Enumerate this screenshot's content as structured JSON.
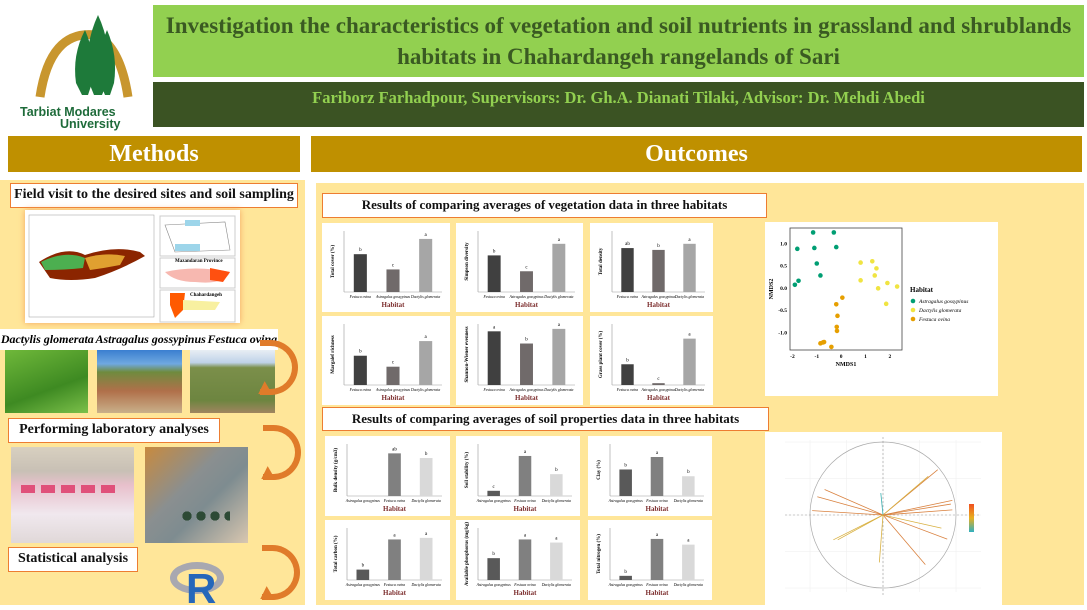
{
  "logo": {
    "text_line1": "Tarbiat Modares",
    "text_line2": "University"
  },
  "header": {
    "title": "Investigation the characteristics of vegetation and soil nutrients in grassland and shrublands habitats in Chahardangeh rangelands of Sari",
    "authors": "Fariborz Farhadpour, Supervisors: Dr. Gh.A. Dianati Tilaki, Advisor: Dr. Mehdi Abedi"
  },
  "methods": {
    "heading": "Methods",
    "field_visit": "Field visit to the desired sites and soil sampling",
    "map_labels": {
      "province": "Mazandaran Province",
      "area": "Chahardangeh"
    },
    "species": [
      "Dactylis glomerata",
      "Astragalus gossypinus",
      "Festuca ovina"
    ],
    "lab": "Performing laboratory analyses",
    "stats": "Statistical analysis",
    "r_logo": "R"
  },
  "outcomes": {
    "heading": "Outcomes",
    "veg_heading": "Results of comparing averages of vegetation data in three habitats",
    "soil_heading": "Results of comparing averages of soil properties data in three habitats"
  },
  "colors": {
    "green": "#92D050",
    "dark_green": "#3B5323",
    "gold": "#BF9000",
    "panel": "#FFE699",
    "border": "#ED7D31"
  },
  "chart_data": [
    {
      "type": "bar",
      "group": "vegetation",
      "ylabel": "Total cover (%)",
      "xlabel": "Habitat",
      "categories": [
        "Festuca ovina",
        "Astragalus gossypinus",
        "Dactylis glomerata"
      ],
      "values": [
        0.62,
        0.37,
        0.87
      ],
      "letters": [
        "b",
        "c",
        "a"
      ],
      "ylim": [
        0,
        1
      ]
    },
    {
      "type": "bar",
      "group": "vegetation",
      "ylabel": "Simpson diversity",
      "xlabel": "Habitat",
      "categories": [
        "Festuca ovina",
        "Astragalus gossypinus",
        "Dactylis glomerata"
      ],
      "values": [
        0.6,
        0.34,
        0.79
      ],
      "letters": [
        "b",
        "c",
        "a"
      ],
      "ylim": [
        0,
        1
      ]
    },
    {
      "type": "bar",
      "group": "vegetation",
      "ylabel": "Total density",
      "xlabel": "Habitat",
      "categories": [
        "Festuca ovina",
        "Astragalus gossypinus",
        "Dactylis glomerata"
      ],
      "values": [
        0.72,
        0.69,
        0.79
      ],
      "letters": [
        "ab",
        "b",
        "a"
      ],
      "ylim": [
        0,
        1
      ]
    },
    {
      "type": "bar",
      "group": "vegetation",
      "ylabel": "Margalef richness",
      "xlabel": "Habitat",
      "categories": [
        "Festuca ovina",
        "Astragalus gossypinus",
        "Dactylis glomerata"
      ],
      "values": [
        0.48,
        0.3,
        0.72
      ],
      "letters": [
        "b",
        "c",
        "a"
      ],
      "ylim": [
        0,
        1
      ]
    },
    {
      "type": "bar",
      "group": "vegetation",
      "ylabel": "Shannon-Wiener evenness",
      "xlabel": "Habitat",
      "categories": [
        "Festuca ovina",
        "Astragalus gossypinus",
        "Dactylis glomerata"
      ],
      "values": [
        0.88,
        0.68,
        0.92
      ],
      "letters": [
        "a",
        "b",
        "a"
      ],
      "ylim": [
        0,
        1
      ]
    },
    {
      "type": "bar",
      "group": "vegetation",
      "ylabel": "Grass plant cover (%)",
      "xlabel": "Habitat",
      "categories": [
        "Festuca ovina",
        "Astragalus gossypinus",
        "Dactylis glomerata"
      ],
      "values": [
        0.34,
        0.03,
        0.76
      ],
      "letters": [
        "b",
        "c",
        "a"
      ],
      "ylim": [
        0,
        1
      ]
    },
    {
      "type": "bar",
      "group": "soil",
      "ylabel": "Bulk density (g/cm3)",
      "xlabel": "Habitat",
      "categories": [
        "Astragalus gossypinus",
        "Festuca ovina",
        "Dactylis glomerata"
      ],
      "values": [
        0,
        0.82,
        0.73
      ],
      "letters": [
        "",
        "ab",
        "b"
      ],
      "ylim": [
        0,
        1
      ]
    },
    {
      "type": "bar",
      "group": "soil",
      "ylabel": "Soil stability (%)",
      "xlabel": "Habitat",
      "categories": [
        "Astragalus gossypinus",
        "Festuca ovina",
        "Dactylis glomerata"
      ],
      "values": [
        0.1,
        0.77,
        0.42
      ],
      "letters": [
        "c",
        "a",
        "b"
      ],
      "ylim": [
        0,
        1
      ]
    },
    {
      "type": "bar",
      "group": "soil",
      "ylabel": "Clay (%)",
      "xlabel": "Habitat",
      "categories": [
        "Astragalus gossypinus",
        "Festuca ovina",
        "Dactylis glomerata"
      ],
      "values": [
        0.51,
        0.75,
        0.38
      ],
      "letters": [
        "b",
        "a",
        "b"
      ],
      "ylim": [
        0,
        1
      ]
    },
    {
      "type": "bar",
      "group": "soil",
      "ylabel": "Total carbon (%)",
      "xlabel": "Habitat",
      "categories": [
        "Astragalus gossypinus",
        "Festuca ovina",
        "Dactylis glomerata"
      ],
      "values": [
        0.2,
        0.78,
        0.81
      ],
      "letters": [
        "b",
        "a",
        "a"
      ],
      "ylim": [
        0,
        1
      ]
    },
    {
      "type": "bar",
      "group": "soil",
      "ylabel": "Available phosphorus (mg/kg)",
      "xlabel": "Habitat",
      "categories": [
        "Astragalus gossypinus",
        "Festuca ovina",
        "Dactylis glomerata"
      ],
      "values": [
        0.42,
        0.78,
        0.72
      ],
      "letters": [
        "b",
        "a",
        "a"
      ],
      "ylim": [
        0,
        1
      ]
    },
    {
      "type": "bar",
      "group": "soil",
      "ylabel": "Total nitrogen (%)",
      "xlabel": "Habitat",
      "categories": [
        "Astragalus gossypinus",
        "Festuca ovina",
        "Dactylis glomerata"
      ],
      "values": [
        0.08,
        0.79,
        0.68
      ],
      "letters": [
        "b",
        "a",
        "a"
      ],
      "ylim": [
        0,
        1
      ]
    },
    {
      "type": "scatter",
      "xlabel": "NMDS1",
      "ylabel": "NMDS2",
      "xlim": [
        -2.1,
        2.5
      ],
      "ylim": [
        -1.4,
        1.35
      ],
      "xticks": [
        -2,
        -1,
        0,
        1,
        2
      ],
      "yticks": [
        -1.0,
        -0.5,
        0.0,
        0.5,
        1.0
      ],
      "legend_title": "Habitat",
      "legend": "right",
      "series": [
        {
          "name": "Astragalus gossypinus",
          "color": "#009E73",
          "points": [
            [
              -1.15,
              1.25
            ],
            [
              -0.3,
              1.25
            ],
            [
              -1.8,
              0.88
            ],
            [
              -1.1,
              0.9
            ],
            [
              -0.2,
              0.92
            ],
            [
              -1.0,
              0.55
            ],
            [
              -0.85,
              0.28
            ],
            [
              -1.75,
              0.16
            ],
            [
              -1.9,
              0.07
            ]
          ]
        },
        {
          "name": "Dactylis glomerata",
          "color": "#F0E442",
          "points": [
            [
              0.8,
              0.57
            ],
            [
              1.28,
              0.6
            ],
            [
              1.45,
              0.44
            ],
            [
              1.38,
              0.28
            ],
            [
              0.8,
              0.17
            ],
            [
              1.9,
              0.11
            ],
            [
              1.52,
              -0.01
            ],
            [
              2.3,
              0.03
            ],
            [
              1.85,
              -0.36
            ]
          ]
        },
        {
          "name": "Festuca ovina",
          "color": "#E69F00",
          "points": [
            [
              0.05,
              -0.22
            ],
            [
              -0.2,
              -0.37
            ],
            [
              -0.15,
              -0.63
            ],
            [
              -0.18,
              -0.88
            ],
            [
              -0.17,
              -0.97
            ],
            [
              -0.85,
              -1.25
            ],
            [
              -0.75,
              -1.23
            ],
            [
              -0.7,
              -1.22
            ],
            [
              -0.4,
              -1.33
            ]
          ]
        }
      ]
    },
    {
      "type": "pca-correlation-circle",
      "xlim": [
        -1,
        1
      ],
      "ylim": [
        -1,
        1
      ],
      "grid": true,
      "arrows": [
        [
          0.75,
          0.62
        ],
        [
          0.62,
          0.53
        ],
        [
          -0.8,
          0.35
        ],
        [
          -0.9,
          0.25
        ],
        [
          -0.97,
          0.06
        ],
        [
          -0.03,
          0.3
        ],
        [
          0.95,
          0.2
        ],
        [
          0.93,
          0.15
        ],
        [
          0.95,
          0.07
        ],
        [
          0.8,
          -0.18
        ],
        [
          0.88,
          -0.33
        ],
        [
          -0.68,
          -0.34
        ],
        [
          -0.62,
          -0.34
        ],
        [
          0.58,
          -0.68
        ],
        [
          -0.05,
          -0.65
        ]
      ]
    }
  ]
}
